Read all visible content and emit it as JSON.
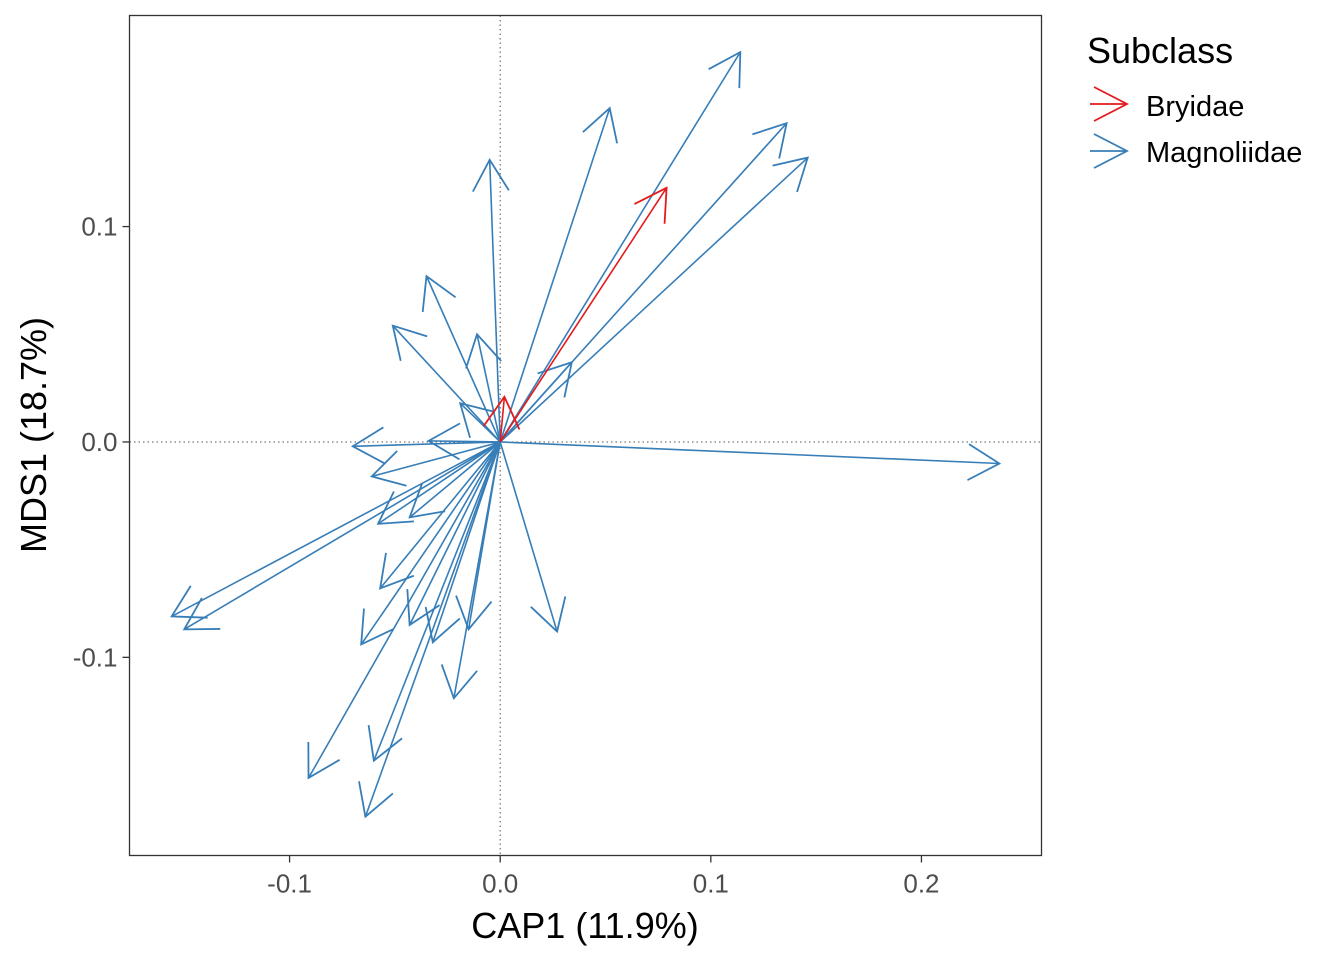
{
  "chart_data": {
    "type": "arrow-biplot",
    "xlabel": "CAP1 (11.9%)",
    "ylabel": "MDS1 (18.7%)",
    "xlim": [
      -0.176,
      0.257
    ],
    "ylim": [
      -0.192,
      0.198
    ],
    "xticks": [
      {
        "v": -0.1,
        "label": "-0.1"
      },
      {
        "v": 0.0,
        "label": "0.0"
      },
      {
        "v": 0.1,
        "label": "0.1"
      },
      {
        "v": 0.2,
        "label": "0.2"
      }
    ],
    "yticks": [
      {
        "v": 0.1,
        "label": "0.1"
      },
      {
        "v": 0.0,
        "label": "0.0"
      },
      {
        "v": -0.1,
        "label": "-0.1"
      }
    ],
    "grid": false,
    "reference_lines": "dotted at x=0 and y=0",
    "legend": {
      "title": "Subclass",
      "placement": "right",
      "entries": [
        {
          "name": "Bryidae",
          "color": "#E41A1C"
        },
        {
          "name": "Magnoliidae",
          "color": "#377EB8"
        }
      ]
    },
    "arrows": [
      {
        "x": 0.237,
        "y": -0.01,
        "group": "Magnoliidae"
      },
      {
        "x": 0.114,
        "y": 0.181,
        "group": "Magnoliidae"
      },
      {
        "x": 0.052,
        "y": 0.155,
        "group": "Magnoliidae"
      },
      {
        "x": 0.136,
        "y": 0.148,
        "group": "Magnoliidae"
      },
      {
        "x": 0.146,
        "y": 0.132,
        "group": "Magnoliidae"
      },
      {
        "x": -0.005,
        "y": 0.131,
        "group": "Magnoliidae"
      },
      {
        "x": 0.034,
        "y": 0.037,
        "group": "Magnoliidae"
      },
      {
        "x": -0.035,
        "y": 0.077,
        "group": "Magnoliidae"
      },
      {
        "x": -0.051,
        "y": 0.054,
        "group": "Magnoliidae"
      },
      {
        "x": -0.011,
        "y": 0.05,
        "group": "Magnoliidae"
      },
      {
        "x": -0.019,
        "y": 0.018,
        "group": "Magnoliidae"
      },
      {
        "x": -0.07,
        "y": -0.002,
        "group": "Magnoliidae"
      },
      {
        "x": -0.034,
        "y": 0.0005,
        "group": "Magnoliidae"
      },
      {
        "x": -0.061,
        "y": -0.016,
        "group": "Magnoliidae"
      },
      {
        "x": -0.156,
        "y": -0.081,
        "group": "Magnoliidae"
      },
      {
        "x": -0.15,
        "y": -0.087,
        "group": "Magnoliidae"
      },
      {
        "x": -0.058,
        "y": -0.038,
        "group": "Magnoliidae"
      },
      {
        "x": -0.043,
        "y": -0.035,
        "group": "Magnoliidae"
      },
      {
        "x": -0.057,
        "y": -0.068,
        "group": "Magnoliidae"
      },
      {
        "x": -0.066,
        "y": -0.094,
        "group": "Magnoliidae"
      },
      {
        "x": -0.043,
        "y": -0.085,
        "group": "Magnoliidae"
      },
      {
        "x": -0.032,
        "y": -0.093,
        "group": "Magnoliidae"
      },
      {
        "x": -0.015,
        "y": -0.087,
        "group": "Magnoliidae"
      },
      {
        "x": 0.027,
        "y": -0.088,
        "group": "Magnoliidae"
      },
      {
        "x": -0.022,
        "y": -0.119,
        "group": "Magnoliidae"
      },
      {
        "x": -0.091,
        "y": -0.156,
        "group": "Magnoliidae"
      },
      {
        "x": -0.06,
        "y": -0.148,
        "group": "Magnoliidae"
      },
      {
        "x": -0.064,
        "y": -0.174,
        "group": "Magnoliidae"
      },
      {
        "x": 0.079,
        "y": 0.118,
        "group": "Bryidae"
      },
      {
        "x": 0.002,
        "y": 0.021,
        "group": "Bryidae"
      }
    ]
  }
}
